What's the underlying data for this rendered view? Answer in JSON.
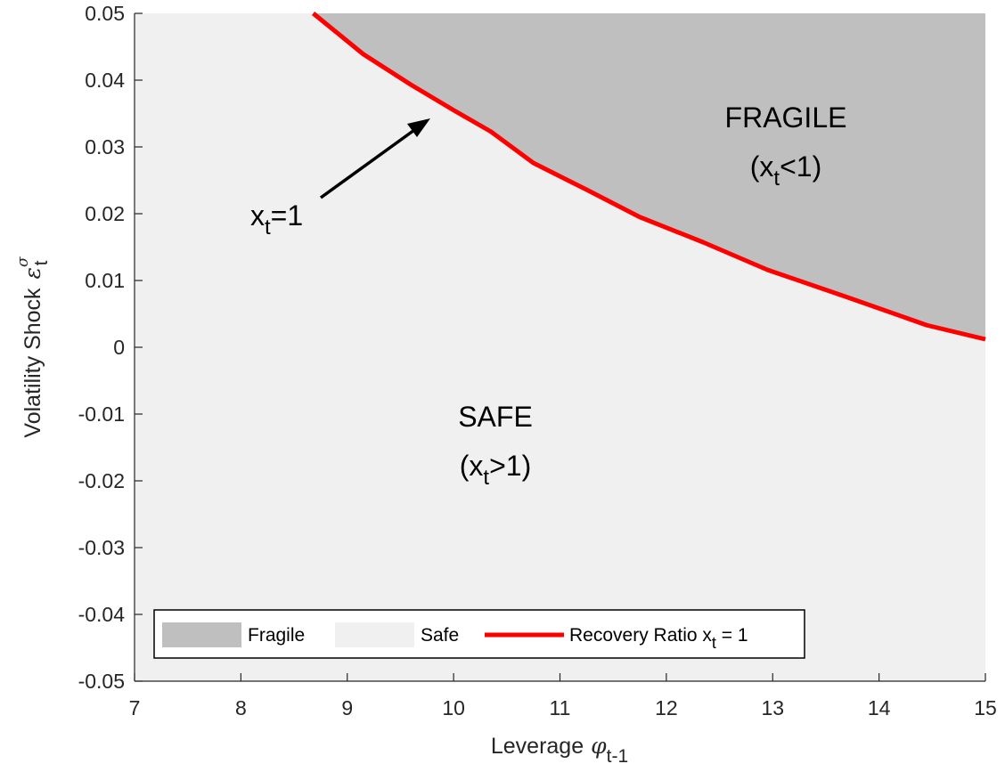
{
  "chart_data": {
    "type": "area",
    "xlabel": "Leverage",
    "xlabel_symbol": "φ",
    "xlabel_sub": "t-1",
    "ylabel": "Volatility Shock",
    "ylabel_symbol": "ε",
    "ylabel_sup": "σ",
    "ylabel_sub": "t",
    "xlim": [
      7,
      15
    ],
    "ylim": [
      -0.05,
      0.05
    ],
    "xticks": [
      7,
      8,
      9,
      10,
      11,
      12,
      13,
      14,
      15
    ],
    "yticks": [
      0.05,
      0.04,
      0.03,
      0.02,
      0.01,
      0,
      -0.01,
      -0.02,
      -0.03,
      -0.04,
      -0.05
    ],
    "ytick_labels": [
      "0.05",
      "0.04",
      "0.03",
      "0.02",
      "0.01",
      "0",
      "-0.01",
      "-0.02",
      "-0.03",
      "-0.04",
      "-0.05"
    ],
    "grid": false,
    "colors": {
      "fragile": "#bfbfbf",
      "safe": "#f0f0f0",
      "boundary": "#ff0000"
    },
    "boundary_series": {
      "name": "Recovery Ratio x_t = 1",
      "x": [
        8.68,
        9.15,
        9.6,
        10.0,
        10.35,
        10.75,
        11.25,
        11.75,
        12.35,
        12.95,
        13.7,
        14.45,
        15.0
      ],
      "y": [
        0.05,
        0.0439,
        0.0393,
        0.0355,
        0.0323,
        0.0276,
        0.0236,
        0.0195,
        0.0157,
        0.0116,
        0.0075,
        0.0033,
        0.0012
      ]
    },
    "regions": [
      {
        "label": "FRAGILE",
        "condition_main": "(x",
        "condition_sub": "t",
        "condition_rest": "<1)"
      },
      {
        "label": "SAFE",
        "condition_main": "(x",
        "condition_sub": "t",
        "condition_rest": ">1)"
      }
    ],
    "annotation": {
      "main": "x",
      "sub": "t",
      "rest": "=1"
    },
    "legend": {
      "placement": "bottom-left",
      "entries": [
        {
          "label": "Fragile",
          "kind": "patch",
          "color": "#bfbfbf"
        },
        {
          "label": "Safe",
          "kind": "patch",
          "color": "#f0f0f0"
        },
        {
          "label_main": "Recovery Ratio x",
          "label_sub": "t",
          "label_rest": " = 1",
          "kind": "line",
          "color": "#ff0000"
        }
      ]
    }
  }
}
